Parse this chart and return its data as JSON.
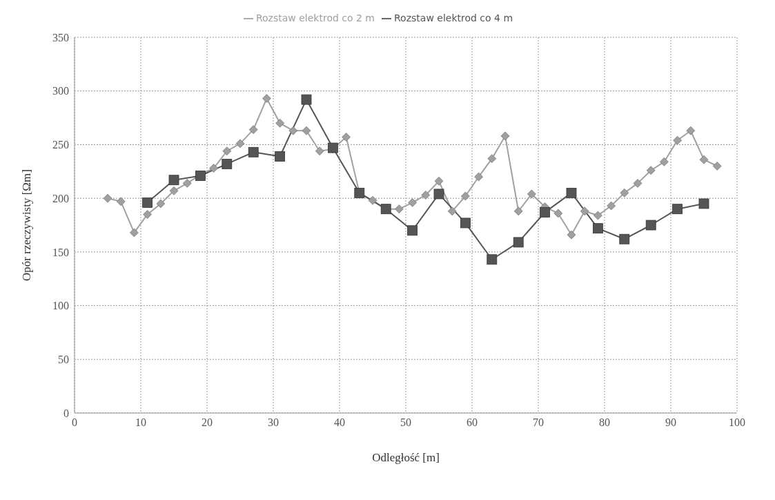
{
  "chart_data": {
    "type": "line",
    "xlabel": "Odległość [m]",
    "ylabel": "Opór rzeczywisty [Ωm]",
    "xlim": [
      0,
      100
    ],
    "xticks": [
      0,
      10,
      20,
      30,
      40,
      50,
      60,
      70,
      80,
      90,
      100
    ],
    "ylim": [
      0,
      350
    ],
    "yticks": [
      0,
      50,
      100,
      150,
      200,
      250,
      300,
      350
    ],
    "grid": true,
    "legend": "top",
    "series": [
      {
        "name": "Rozstaw elektrod co 2 m",
        "color": "#a0a0a0",
        "marker": "diamond",
        "x": [
          5,
          7,
          9,
          11,
          13,
          15,
          17,
          19,
          21,
          23,
          25,
          27,
          29,
          31,
          33,
          35,
          37,
          39,
          41,
          43,
          45,
          47,
          49,
          51,
          53,
          55,
          57,
          59,
          61,
          63,
          65,
          67,
          69,
          71,
          73,
          75,
          77,
          79,
          81,
          83,
          85,
          87,
          89,
          91,
          93,
          95,
          97
        ],
        "values": [
          200,
          197,
          168,
          185,
          195,
          207,
          214,
          222,
          228,
          244,
          251,
          264,
          293,
          270,
          263,
          263,
          244,
          246,
          257,
          205,
          198,
          190,
          190,
          196,
          203,
          216,
          188,
          202,
          220,
          237,
          258,
          188,
          204,
          192,
          186,
          166,
          188,
          184,
          193,
          205,
          214,
          226,
          234,
          254,
          263,
          236,
          230
        ]
      },
      {
        "name": "Rozstaw elektrod co 4 m",
        "color": "#555555",
        "marker": "square",
        "x": [
          11,
          15,
          19,
          23,
          27,
          31,
          35,
          39,
          43,
          47,
          51,
          55,
          59,
          63,
          67,
          71,
          75,
          79,
          83,
          87,
          91,
          95
        ],
        "values": [
          196,
          217,
          221,
          232,
          243,
          239,
          292,
          247,
          205,
          190,
          170,
          204,
          177,
          143,
          159,
          187,
          205,
          172,
          162,
          175,
          190,
          195
        ]
      }
    ]
  }
}
